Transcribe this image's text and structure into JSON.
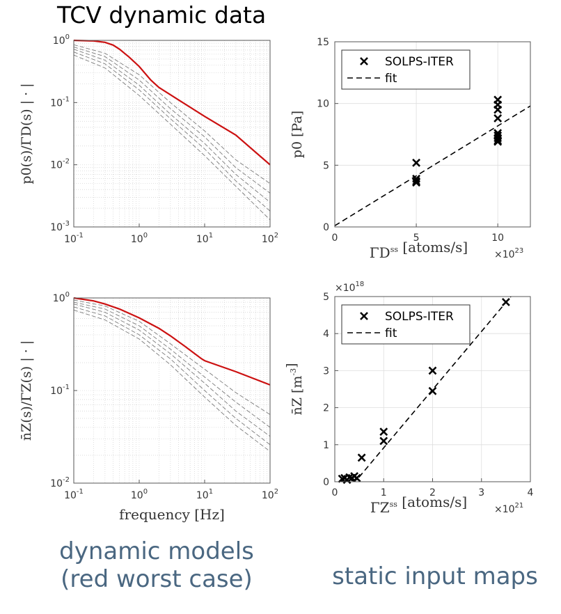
{
  "page_title": "TCV dynamic data",
  "captions": {
    "left_line1": "dynamic models",
    "left_line2": "(red worst case)",
    "right": "static input maps"
  },
  "colors": {
    "worst_case": "#cc1111",
    "other_models": "#7a7a7a",
    "points": "#000000",
    "caption": "#4a6781"
  },
  "chart_data": [
    {
      "id": "p0-transfer",
      "type": "line",
      "ylabel": "p0(s)/ΓD(s) | · |",
      "xlabel": "",
      "xscale": "log",
      "yscale": "log",
      "xlim": [
        0.1,
        100
      ],
      "ylim": [
        0.001,
        1
      ],
      "xticks": [
        0.1,
        1,
        10,
        100
      ],
      "xtick_labels": [
        "10^-1",
        "10^0",
        "10^1",
        "10^2"
      ],
      "yticks": [
        0.001,
        0.01,
        0.1,
        1
      ],
      "ytick_labels": [
        "10^-3",
        "10^-2",
        "10^-1",
        "10^0"
      ],
      "grid": true,
      "series": [
        {
          "role": "worst",
          "x": [
            0.1,
            0.2,
            0.3,
            0.4,
            0.5,
            0.7,
            1,
            1.5,
            2,
            5,
            10,
            30,
            100
          ],
          "y": [
            1.0,
            0.98,
            0.93,
            0.84,
            0.72,
            0.54,
            0.38,
            0.23,
            0.175,
            0.095,
            0.06,
            0.03,
            0.01
          ]
        },
        {
          "role": "other",
          "x": [
            0.1,
            0.3,
            1,
            3,
            10,
            30,
            100
          ],
          "y": [
            0.85,
            0.62,
            0.28,
            0.1,
            0.035,
            0.012,
            0.005
          ]
        },
        {
          "role": "other",
          "x": [
            0.1,
            0.3,
            1,
            3,
            10,
            30,
            100
          ],
          "y": [
            0.78,
            0.55,
            0.23,
            0.08,
            0.028,
            0.009,
            0.0035
          ]
        },
        {
          "role": "other",
          "x": [
            0.1,
            0.3,
            1,
            3,
            10,
            30,
            100
          ],
          "y": [
            0.72,
            0.48,
            0.19,
            0.065,
            0.022,
            0.007,
            0.0025
          ]
        },
        {
          "role": "other",
          "x": [
            0.1,
            0.3,
            1,
            3,
            10,
            30,
            100
          ],
          "y": [
            0.65,
            0.42,
            0.16,
            0.055,
            0.018,
            0.0055,
            0.0018
          ]
        },
        {
          "role": "other",
          "x": [
            0.1,
            0.3,
            1,
            3,
            10,
            30,
            100
          ],
          "y": [
            0.58,
            0.36,
            0.13,
            0.045,
            0.014,
            0.0045,
            0.0013
          ]
        }
      ]
    },
    {
      "id": "p0-map",
      "type": "scatter",
      "ylabel": "p0 [Pa]",
      "xlabel": "ΓD^ss [atoms/s]",
      "x_multiplier": "×10^23",
      "xlim": [
        0,
        12
      ],
      "ylim": [
        0,
        15
      ],
      "xticks": [
        0,
        5,
        10
      ],
      "yticks": [
        0,
        5,
        10,
        15
      ],
      "grid": true,
      "legend": {
        "position": "top-left",
        "entries": [
          "SOLPS-ITER",
          "fit"
        ]
      },
      "points": {
        "x": [
          5,
          5,
          5,
          5,
          10,
          10,
          10,
          10,
          10,
          10,
          10,
          10,
          10
        ],
        "y": [
          5.2,
          3.9,
          3.7,
          3.6,
          10.3,
          9.9,
          9.5,
          8.8,
          7.6,
          7.4,
          7.2,
          7.0,
          6.9
        ]
      },
      "fit": {
        "x": [
          0,
          12
        ],
        "y": [
          0.1,
          9.8
        ]
      }
    },
    {
      "id": "nz-transfer",
      "type": "line",
      "ylabel": "n̄Z(s)/ΓZ(s) | · |",
      "xlabel": "frequency [Hz]",
      "xscale": "log",
      "yscale": "log",
      "xlim": [
        0.1,
        100
      ],
      "ylim": [
        0.01,
        1
      ],
      "xticks": [
        0.1,
        1,
        10,
        100
      ],
      "xtick_labels": [
        "10^-1",
        "10^0",
        "10^1",
        "10^2"
      ],
      "yticks": [
        0.01,
        0.1,
        1
      ],
      "ytick_labels": [
        "10^-2",
        "10^-1",
        "10^0"
      ],
      "grid": true,
      "series": [
        {
          "role": "worst",
          "x": [
            0.1,
            0.2,
            0.3,
            0.5,
            1,
            2,
            3,
            5,
            9,
            10,
            30,
            100
          ],
          "y": [
            1.0,
            0.93,
            0.86,
            0.76,
            0.61,
            0.47,
            0.39,
            0.3,
            0.22,
            0.21,
            0.16,
            0.115
          ]
        },
        {
          "role": "other",
          "x": [
            0.1,
            0.3,
            1,
            3,
            10,
            30,
            100
          ],
          "y": [
            0.95,
            0.82,
            0.56,
            0.32,
            0.17,
            0.095,
            0.055
          ]
        },
        {
          "role": "other",
          "x": [
            0.1,
            0.3,
            1,
            3,
            10,
            30,
            100
          ],
          "y": [
            0.9,
            0.76,
            0.5,
            0.28,
            0.14,
            0.075,
            0.04
          ]
        },
        {
          "role": "other",
          "x": [
            0.1,
            0.3,
            1,
            3,
            10,
            30,
            100
          ],
          "y": [
            0.86,
            0.7,
            0.45,
            0.25,
            0.12,
            0.06,
            0.032
          ]
        },
        {
          "role": "other",
          "x": [
            0.1,
            0.3,
            1,
            3,
            10,
            30,
            100
          ],
          "y": [
            0.8,
            0.64,
            0.4,
            0.22,
            0.1,
            0.05,
            0.026
          ]
        },
        {
          "role": "other",
          "x": [
            0.1,
            0.3,
            1,
            3,
            10,
            30,
            100
          ],
          "y": [
            0.74,
            0.58,
            0.36,
            0.19,
            0.085,
            0.042,
            0.022
          ]
        }
      ]
    },
    {
      "id": "nz-map",
      "type": "scatter",
      "ylabel": "n̄Z [m^-3]",
      "xlabel": "ΓZ^ss [atoms/s]",
      "x_multiplier": "×10^21",
      "y_multiplier": "×10^18",
      "xlim": [
        0,
        4
      ],
      "ylim": [
        0,
        5
      ],
      "xticks": [
        0,
        1,
        2,
        3,
        4
      ],
      "yticks": [
        0,
        1,
        2,
        3,
        4,
        5
      ],
      "grid": true,
      "legend": {
        "position": "top-left",
        "entries": [
          "SOLPS-ITER",
          "fit"
        ]
      },
      "points": {
        "x": [
          0.15,
          0.2,
          0.25,
          0.3,
          0.35,
          0.4,
          0.45,
          0.55,
          1.0,
          1.0,
          2.0,
          2.0,
          3.5
        ],
        "y": [
          0.08,
          0.1,
          0.05,
          0.12,
          0.1,
          0.15,
          0.1,
          0.65,
          1.35,
          1.1,
          3.0,
          2.45,
          4.85
        ]
      },
      "fit": {
        "x": [
          0.15,
          0.45,
          3.6
        ],
        "y": [
          0.0,
          0.05,
          5.0
        ]
      }
    }
  ]
}
